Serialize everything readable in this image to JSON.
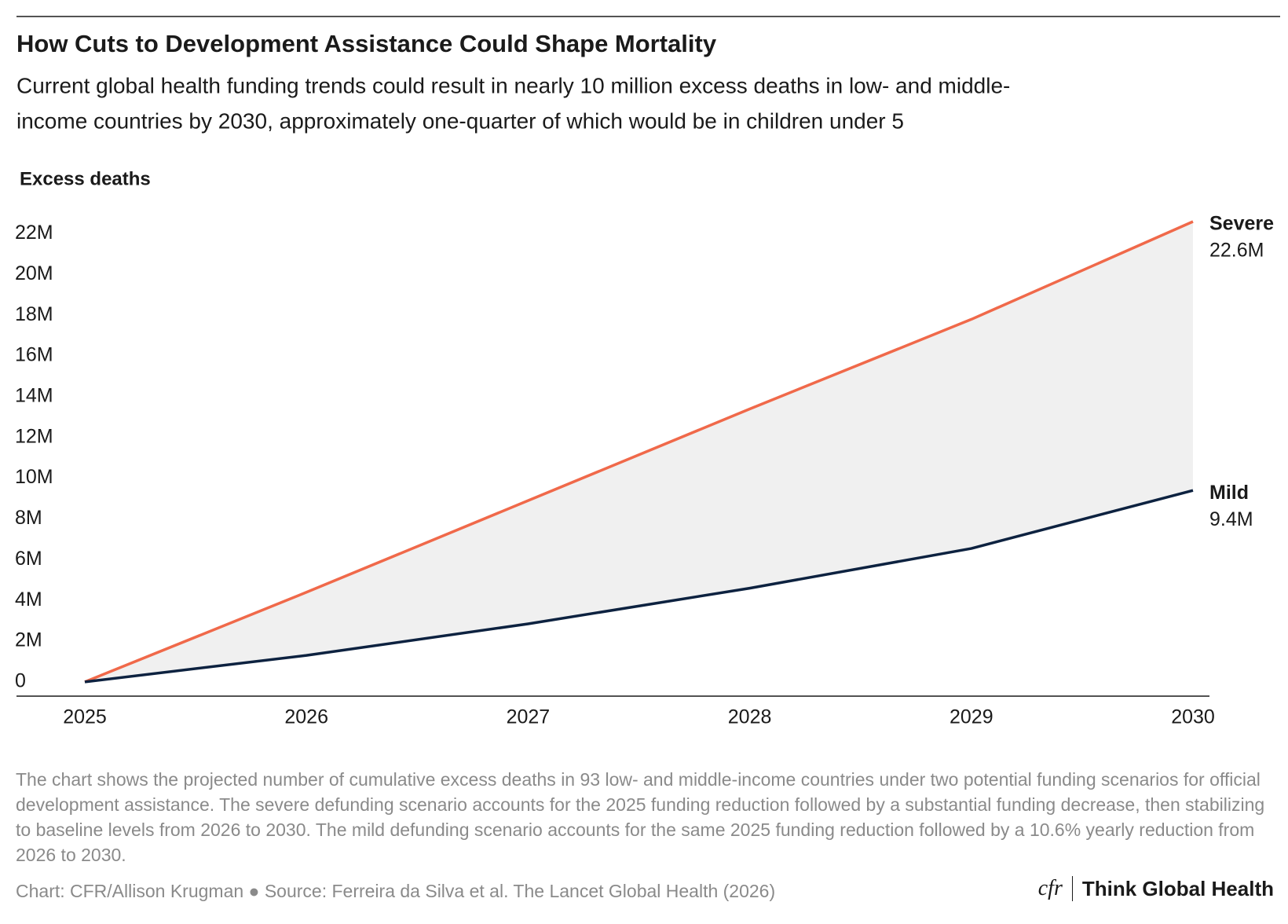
{
  "chart_data": {
    "type": "line",
    "title": "How Cuts to Development Assistance Could Shape Mortality",
    "subtitle": [
      "Current global health funding trends could result in nearly 10 million excess deaths in low- and middle-",
      "income countries by 2030, approximately one-quarter of which would be in children under 5"
    ],
    "y_label": "Excess deaths",
    "x": [
      2025,
      2026,
      2027,
      2028,
      2029,
      2030
    ],
    "series": [
      {
        "name": "Severe",
        "color": "#f0694a",
        "label_color": "#e04a2a",
        "values": [
          0,
          4.4,
          8.9,
          13.4,
          17.8,
          22.6
        ],
        "value_labels": [
          null,
          null,
          null,
          null,
          null,
          "22.6M"
        ]
      },
      {
        "name": "Mild",
        "color": "#0d2240",
        "label_color": "#0d2240",
        "values": [
          0,
          1.3,
          2.85,
          4.6,
          6.55,
          9.4
        ],
        "value_labels": [
          null,
          null,
          null,
          null,
          null,
          "9.4M"
        ]
      }
    ],
    "area_between_color": "#f0f0f0",
    "xlim": [
      2025,
      2030
    ],
    "xticks": [
      2025,
      2026,
      2027,
      2028,
      2029,
      2030
    ],
    "ylim": [
      -0.7,
      22.6
    ],
    "yticks": [
      0,
      {
        "value": 2,
        "label": "2M"
      },
      {
        "value": 4,
        "label": "4M"
      },
      {
        "value": 6,
        "label": "6M"
      },
      {
        "value": 8,
        "label": "8M"
      },
      {
        "value": 10,
        "label": "10M"
      },
      {
        "value": 12,
        "label": "12M"
      },
      {
        "value": 14,
        "label": "14M"
      },
      {
        "value": 16,
        "label": "16M"
      },
      {
        "value": 18,
        "label": "18M"
      },
      {
        "value": 20,
        "label": "20M"
      },
      {
        "value": 22,
        "label": "22M"
      }
    ],
    "note": "The chart shows the projected number of cumulative excess deaths in 93 low- and middle-income countries under two potential funding scenarios for official development assistance. The severe defunding scenario accounts for the 2025 funding reduction followed by a substantial funding decrease, then stabilizing to baseline levels from 2026 to 2030. The mild defunding scenario accounts for the same 2025 funding reduction followed by a 10.6% yearly reduction from 2026 to 2030.",
    "credit": "Chart: CFR/Allison Krugman ● Source: Ferreira da Silva et al. The Lancet Global Health (2026)",
    "logo_mark": "cfr",
    "logo_text": "Think Global Health"
  }
}
